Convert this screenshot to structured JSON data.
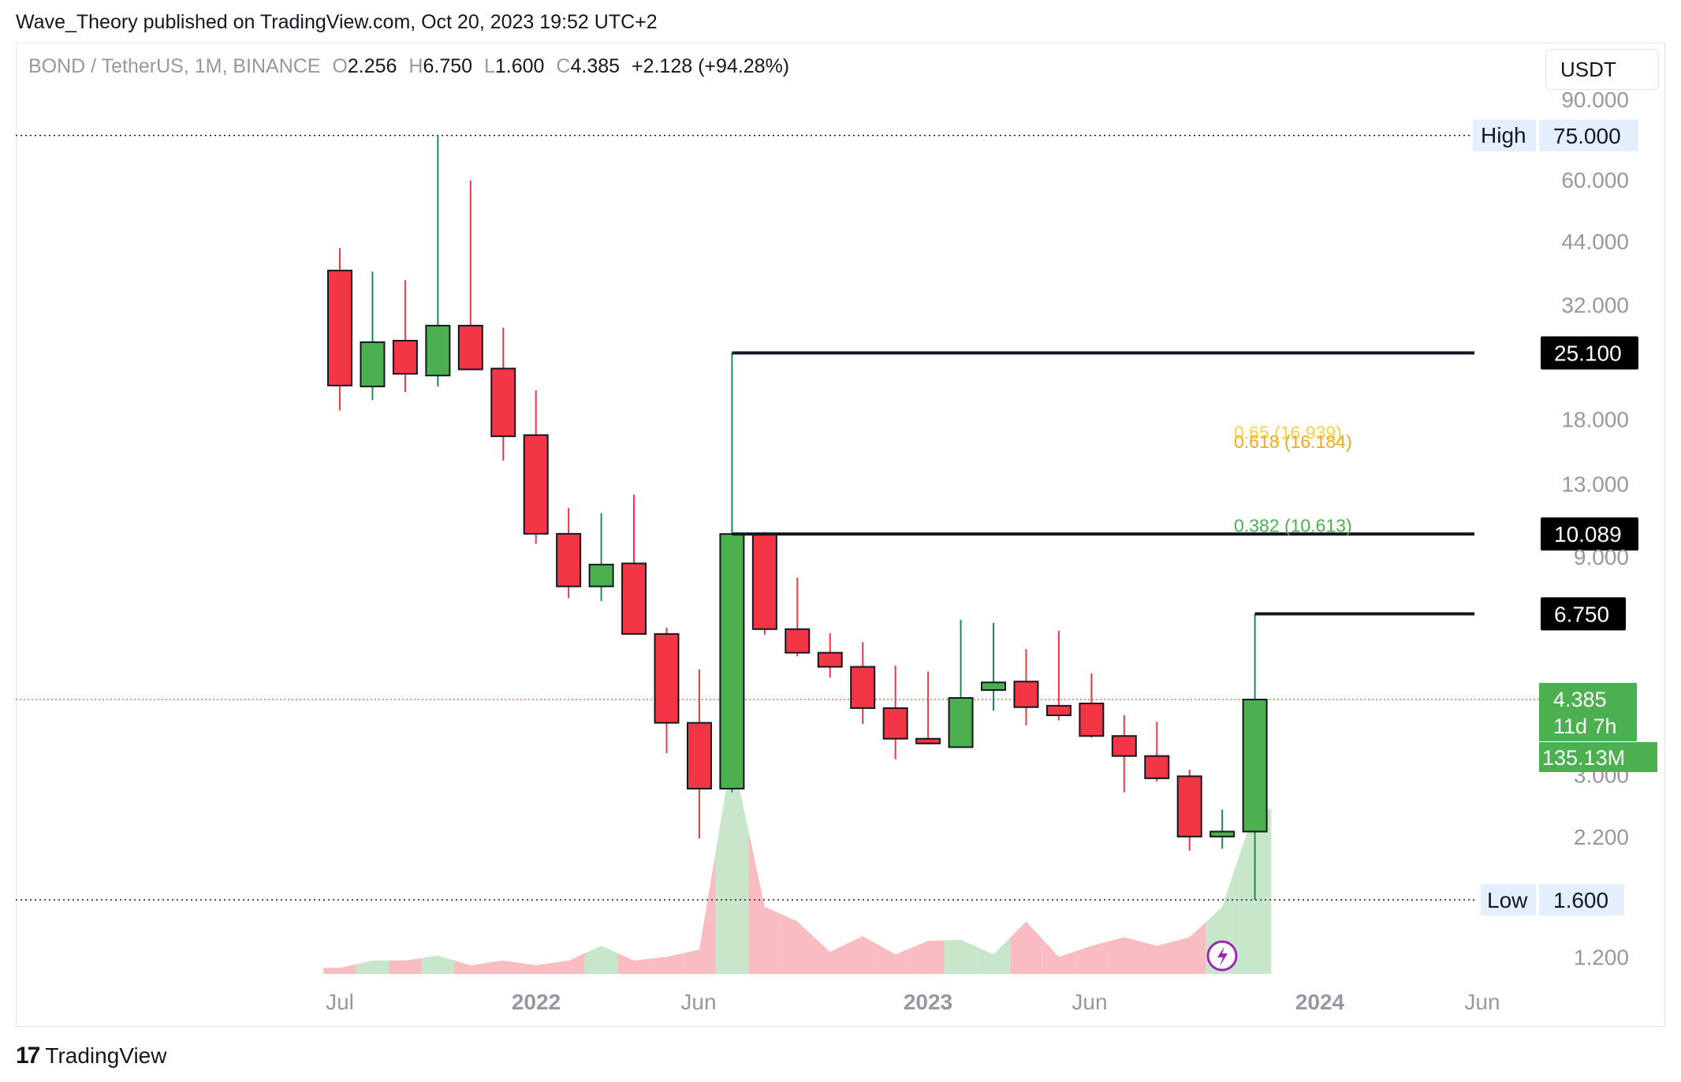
{
  "header": {
    "text": "Wave_Theory published on TradingView.com, Oct 20, 2023 19:52 UTC+2"
  },
  "legend": {
    "symbol": "BOND / TetherUS, 1M, BINANCE",
    "o_key": "O",
    "o_val": "2.256",
    "h_key": "H",
    "h_val": "6.750",
    "l_key": "L",
    "l_val": "1.600",
    "c_key": "C",
    "c_val": "4.385",
    "change": "+2.128 (+94.28%)"
  },
  "currency_button": "USDT",
  "footer": {
    "logo": "17",
    "brand": "TradingView"
  },
  "colors": {
    "up": "#4caf50",
    "down": "#f23645",
    "vol_up": "#c8e6c9",
    "vol_down": "#f9bcc1",
    "fib_618": "#f5a623",
    "fib_65": "#f5d442",
    "fib_382": "#4caf50"
  },
  "chart_data": {
    "type": "candlestick",
    "scale": "log",
    "y_ticks": [
      "90.000",
      "60.000",
      "44.000",
      "32.000",
      "18.000",
      "13.000",
      "9.000",
      "3.000",
      "2.200",
      "1.200"
    ],
    "x_ticks": [
      "Jul",
      "2022",
      "Jun",
      "2023",
      "Jun",
      "2024",
      "Jun"
    ],
    "candles": [
      {
        "o": 38.0,
        "h": 42.5,
        "l": 18.8,
        "c": 21.3
      },
      {
        "o": 21.2,
        "h": 37.8,
        "l": 19.8,
        "c": 26.5
      },
      {
        "o": 26.7,
        "h": 36.2,
        "l": 20.6,
        "c": 22.6
      },
      {
        "o": 22.4,
        "h": 75.0,
        "l": 21.2,
        "c": 28.8
      },
      {
        "o": 28.8,
        "h": 59.8,
        "l": 23.1,
        "c": 23.1
      },
      {
        "o": 23.2,
        "h": 28.5,
        "l": 14.6,
        "c": 16.5
      },
      {
        "o": 16.6,
        "h": 20.8,
        "l": 9.6,
        "c": 10.1
      },
      {
        "o": 10.1,
        "h": 11.5,
        "l": 7.3,
        "c": 7.75
      },
      {
        "o": 7.75,
        "h": 11.2,
        "l": 7.2,
        "c": 8.65
      },
      {
        "o": 8.7,
        "h": 12.3,
        "l": 6.1,
        "c": 6.1
      },
      {
        "o": 6.1,
        "h": 6.3,
        "l": 3.35,
        "c": 3.9
      },
      {
        "o": 3.9,
        "h": 5.1,
        "l": 2.18,
        "c": 2.8
      },
      {
        "o": 2.8,
        "h": 25.1,
        "l": 2.75,
        "c": 10.089
      },
      {
        "o": 10.089,
        "h": 10.2,
        "l": 6.08,
        "c": 6.25
      },
      {
        "o": 6.25,
        "h": 8.1,
        "l": 5.45,
        "c": 5.55
      },
      {
        "o": 5.55,
        "h": 6.12,
        "l": 4.9,
        "c": 5.17
      },
      {
        "o": 5.17,
        "h": 5.85,
        "l": 3.88,
        "c": 4.2
      },
      {
        "o": 4.2,
        "h": 5.2,
        "l": 3.25,
        "c": 3.6
      },
      {
        "o": 3.6,
        "h": 5.05,
        "l": 3.5,
        "c": 3.52
      },
      {
        "o": 3.45,
        "h": 6.55,
        "l": 3.45,
        "c": 4.42
      },
      {
        "o": 4.6,
        "h": 6.45,
        "l": 4.15,
        "c": 4.78
      },
      {
        "o": 4.8,
        "h": 5.65,
        "l": 3.85,
        "c": 4.22
      },
      {
        "o": 4.25,
        "h": 6.2,
        "l": 3.95,
        "c": 4.05
      },
      {
        "o": 4.3,
        "h": 5.0,
        "l": 3.62,
        "c": 3.65
      },
      {
        "o": 3.65,
        "h": 4.05,
        "l": 2.75,
        "c": 3.3
      },
      {
        "o": 3.3,
        "h": 3.92,
        "l": 2.9,
        "c": 2.95
      },
      {
        "o": 2.98,
        "h": 3.08,
        "l": 2.05,
        "c": 2.2
      },
      {
        "o": 2.2,
        "h": 2.52,
        "l": 2.07,
        "c": 2.256
      },
      {
        "o": 2.256,
        "h": 6.75,
        "l": 1.6,
        "c": 4.385
      }
    ],
    "volume": [
      0.05,
      0.11,
      0.11,
      0.15,
      0.07,
      0.11,
      0.07,
      0.11,
      0.23,
      0.11,
      0.14,
      0.2,
      1.8,
      0.55,
      0.43,
      0.18,
      0.31,
      0.16,
      0.27,
      0.28,
      0.16,
      0.43,
      0.14,
      0.23,
      0.3,
      0.23,
      0.3,
      0.55,
      1.35
    ],
    "horizontal_levels": [
      {
        "label": "25.100",
        "value": 25.1
      },
      {
        "label": "10.089",
        "value": 10.089
      },
      {
        "label": "6.750",
        "value": 6.75
      }
    ],
    "fib_labels": [
      {
        "text": "0.65 (16.939)",
        "color": "#f5d442",
        "value": 16.939
      },
      {
        "text": "0.618 (16.184)",
        "color": "#f5a623",
        "value": 16.184
      },
      {
        "text": "0.382 (10.613)",
        "color": "#4caf50",
        "value": 10.613
      }
    ],
    "high": {
      "label": "High",
      "value_text": "75.000",
      "value": 75.0
    },
    "low": {
      "label": "Low",
      "value_text": "1.600",
      "value": 1.6
    },
    "last": {
      "price": "4.385",
      "countdown": "11d 7h",
      "volume": "135.13M",
      "value": 4.385
    }
  }
}
